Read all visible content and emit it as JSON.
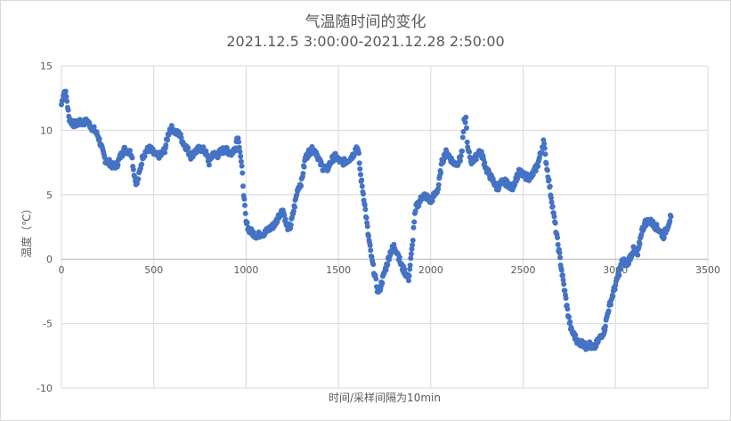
{
  "chart_data": {
    "type": "scatter",
    "title": "气温随时间的变化",
    "subtitle": "2021.12.5 3:00:00-2021.12.28 2:50:00",
    "xlabel": "时间/采样间隔为10min",
    "ylabel": "温度（℃）",
    "xlim": [
      0,
      3500
    ],
    "ylim": [
      -10,
      15
    ],
    "xticks": [
      0,
      500,
      1000,
      1500,
      2000,
      2500,
      3000,
      3500
    ],
    "yticks": [
      -10,
      -5,
      0,
      5,
      10,
      15
    ],
    "grid": true,
    "legend": "none",
    "color": "#4472c4",
    "series": [
      {
        "x": [
          0,
          10,
          20,
          30,
          40,
          60,
          80,
          100,
          120,
          140,
          160,
          180,
          200,
          220,
          240,
          260,
          280,
          300,
          320,
          340,
          360,
          380,
          390,
          400,
          410,
          420,
          440,
          460,
          480,
          500,
          520,
          540,
          560,
          580,
          590,
          600,
          610,
          620,
          640,
          660,
          680,
          700,
          720,
          740,
          760,
          780,
          800,
          820,
          840,
          860,
          880,
          900,
          920,
          940,
          950,
          960,
          970,
          980,
          990,
          1000,
          1020,
          1040,
          1060,
          1080,
          1100,
          1120,
          1140,
          1160,
          1180,
          1200,
          1210,
          1220,
          1240,
          1260,
          1280,
          1300,
          1320,
          1340,
          1360,
          1380,
          1400,
          1420,
          1440,
          1460,
          1480,
          1500,
          1520,
          1540,
          1560,
          1580,
          1600,
          1610,
          1620,
          1640,
          1660,
          1680,
          1700,
          1710,
          1720,
          1740,
          1760,
          1780,
          1800,
          1820,
          1840,
          1860,
          1880,
          1900,
          1910,
          1920,
          1940,
          1960,
          1980,
          2000,
          2020,
          2040,
          2060,
          2080,
          2100,
          2120,
          2140,
          2160,
          2170,
          2180,
          2190,
          2200,
          2220,
          2240,
          2260,
          2280,
          2300,
          2320,
          2340,
          2360,
          2380,
          2400,
          2420,
          2440,
          2460,
          2480,
          2500,
          2520,
          2540,
          2560,
          2580,
          2600,
          2610,
          2620,
          2640,
          2660,
          2680,
          2700,
          2720,
          2740,
          2760,
          2780,
          2800,
          2820,
          2840,
          2860,
          2880,
          2900,
          2920,
          2940,
          2960,
          2980,
          3000,
          3020,
          3040,
          3060,
          3080,
          3100,
          3120,
          3140,
          3160,
          3180,
          3200,
          3220,
          3240,
          3260,
          3280,
          3300
        ],
        "y": [
          12,
          12.8,
          13.1,
          12.3,
          11,
          10.5,
          10.5,
          10.6,
          10.6,
          10.7,
          10.3,
          10,
          9.5,
          8.5,
          7.6,
          7.5,
          7.2,
          7.3,
          8,
          8.5,
          8.4,
          8.2,
          7,
          6.1,
          5.9,
          6.5,
          8,
          8.4,
          8.6,
          8.2,
          8,
          8.1,
          8.5,
          9.8,
          10.2,
          10.1,
          10,
          9.8,
          9.7,
          9,
          8.6,
          8,
          8.3,
          8.5,
          8.6,
          8.3,
          7.5,
          8.2,
          8,
          8.3,
          8.5,
          8.4,
          8.2,
          8.6,
          9.4,
          9.3,
          8,
          6.5,
          4.5,
          2.8,
          2.2,
          2,
          1.8,
          2,
          2,
          2.3,
          2.5,
          2.8,
          3.5,
          3.8,
          3.2,
          2.5,
          2.5,
          4,
          5.5,
          6,
          7.8,
          8.3,
          8.5,
          8.3,
          7.5,
          7,
          7,
          7.6,
          8,
          7.7,
          7.5,
          7.6,
          7.8,
          8.1,
          8.8,
          8,
          6.5,
          4.5,
          2,
          0,
          -1.5,
          -2.3,
          -2.5,
          -1.5,
          -0.5,
          0.5,
          1,
          0.5,
          -0.5,
          -1,
          -1.5,
          1,
          3,
          4,
          4.5,
          5,
          4.8,
          4.5,
          5,
          5.5,
          7.5,
          8.3,
          8,
          7.5,
          7.4,
          7.8,
          8.5,
          10.6,
          10.9,
          8.5,
          7.6,
          7.8,
          8.4,
          8,
          7,
          6.5,
          6,
          5.5,
          5.9,
          6,
          5.8,
          5.5,
          6.2,
          6.8,
          6.5,
          6.4,
          6.3,
          6.8,
          7.4,
          8.5,
          9.2,
          8,
          6,
          4,
          2,
          0,
          -2,
          -4,
          -5.5,
          -6,
          -6.5,
          -6.5,
          -6.8,
          -6.6,
          -7,
          -6.5,
          -6,
          -5.5,
          -4,
          -3,
          -2,
          -1,
          0,
          -0.5,
          0.2,
          0.8,
          0.3,
          2.1,
          2.8,
          3,
          2.8,
          2.5,
          2.2,
          1.8,
          2.5,
          3.3
        ]
      }
    ]
  }
}
